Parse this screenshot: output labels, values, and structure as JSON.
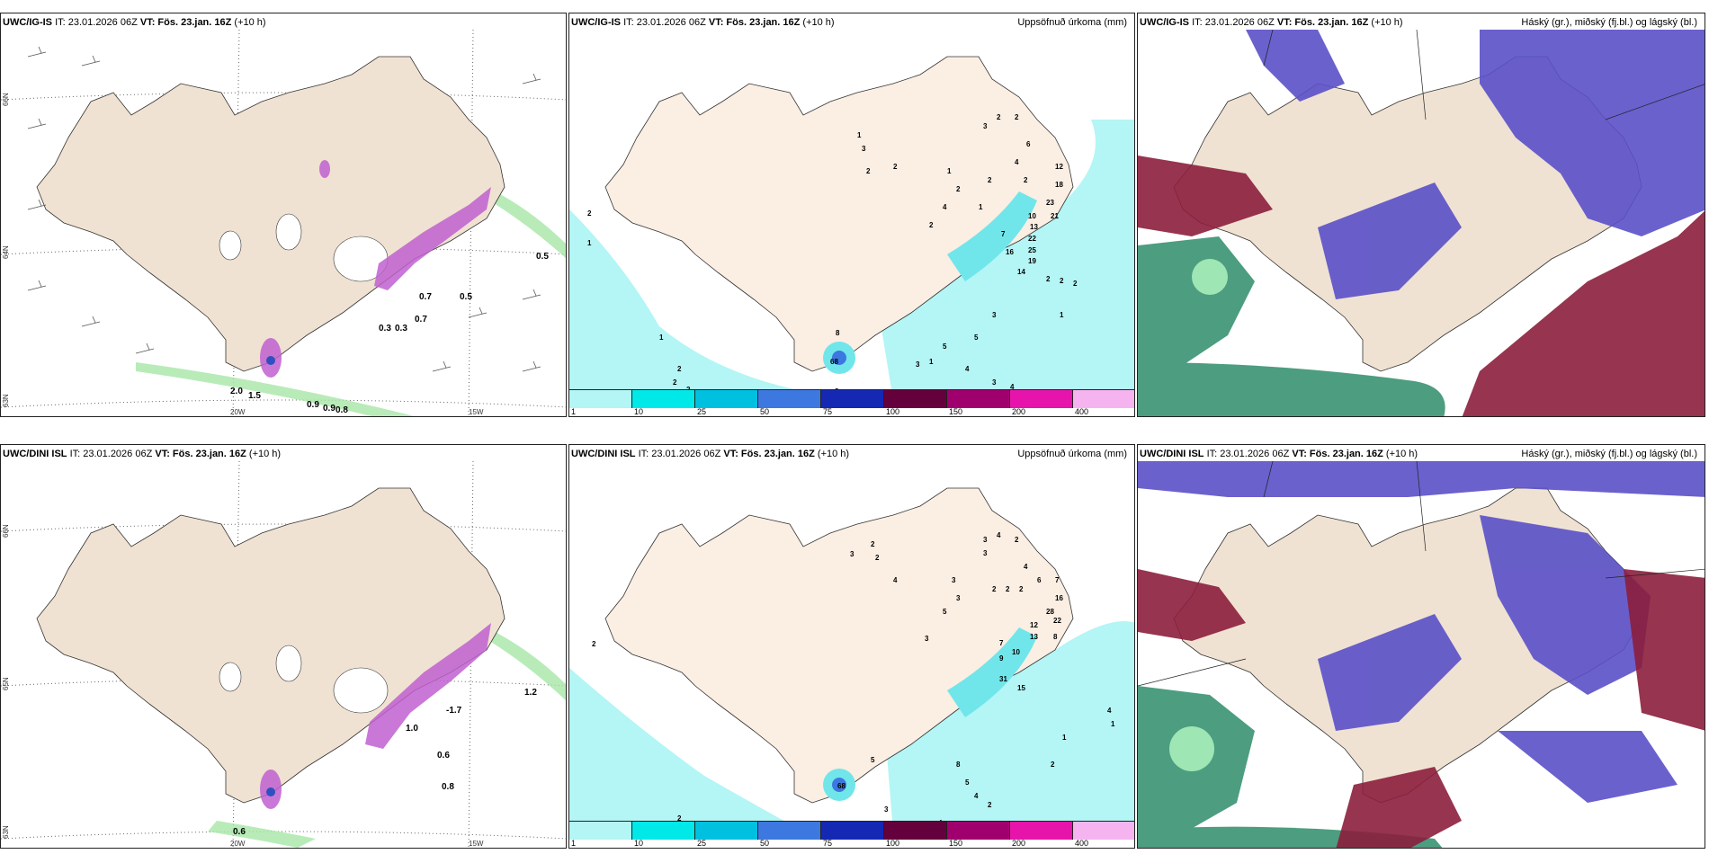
{
  "panels": {
    "top_left": {
      "model": "UWC/IG-IS",
      "it": "IT: 23.01.2026 06Z",
      "vt_label": "VT:",
      "vt": "Fös. 23.jan. 16Z",
      "lead": "(+10 h)"
    },
    "top_mid": {
      "model": "UWC/IG-IS",
      "it": "IT: 23.01.2026 06Z",
      "vt_label": "VT:",
      "vt": "Fös. 23.jan. 16Z",
      "lead": "(+10 h)",
      "right": "Uppsöfnuð úrkoma (mm)"
    },
    "top_right": {
      "model": "UWC/IG-IS",
      "it": "IT: 23.01.2026 06Z",
      "vt_label": "VT:",
      "vt": "Fös. 23.jan. 16Z",
      "lead": "(+10 h)",
      "right": "Háský (gr.), miðský (fj.bl.) og lágský (bl.)"
    },
    "bot_left": {
      "model": "UWC/DINI ISL",
      "it": "IT: 23.01.2026 06Z",
      "vt_label": "VT:",
      "vt": "Fös. 23.jan. 16Z",
      "lead": "(+10 h)"
    },
    "bot_mid": {
      "model": "UWC/DINI ISL",
      "it": "IT: 23.01.2026 06Z",
      "vt_label": "VT:",
      "vt": "Fös. 23.jan. 16Z",
      "lead": "(+10 h)",
      "right": "Uppsöfnuð úrkoma (mm)"
    },
    "bot_right": {
      "model": "UWC/DINI ISL",
      "it": "IT: 23.01.2026 06Z",
      "vt_label": "VT:",
      "vt": "Fös. 23.jan. 16Z",
      "lead": "(+10 h)",
      "right": "Háský (gr.), miðský (fj.bl.) og lágský (bl.)"
    }
  },
  "axes": {
    "lat66": "66N",
    "lat65": "65N",
    "lat64": "64N",
    "lat63": "63N",
    "lon20": "20W",
    "lon15": "15W"
  },
  "colorbar": {
    "ticks": [
      "1",
      "10",
      "25",
      "50",
      "75",
      "100",
      "150",
      "200",
      "400"
    ],
    "colors": [
      "#b4f5f5",
      "#00e8e8",
      "#00c0e0",
      "#3c78e0",
      "#1428b4",
      "#64003c",
      "#a0006e",
      "#e614aa",
      "#f5b4f0"
    ]
  },
  "labels_top_left": [
    "0.5",
    "0.7",
    "0.5",
    "0.7",
    "0.3",
    "0.3",
    "2.0",
    "1.5",
    "0.9",
    "0.9",
    "0.8"
  ],
  "labels_bot_left": [
    "1.2",
    "-1.7",
    "1.0",
    "0.6",
    "0.8",
    "0.6"
  ],
  "labels_top_mid": [
    "3",
    "2",
    "2",
    "6",
    "3",
    "1",
    "2",
    "2",
    "4",
    "12",
    "1",
    "2",
    "2",
    "18",
    "2",
    "4",
    "1",
    "23",
    "2",
    "21",
    "10",
    "13",
    "22",
    "25",
    "16",
    "7",
    "19",
    "14",
    "2",
    "2",
    "2",
    "1",
    "3",
    "3",
    "1",
    "5",
    "4",
    "5",
    "3",
    "4",
    "3",
    "2",
    "2",
    "2",
    "1",
    "1",
    "2",
    "8",
    "7",
    "7",
    "7",
    "8",
    "68"
  ],
  "labels_bot_mid": [
    "2",
    "3",
    "2",
    "3",
    "4",
    "2",
    "3",
    "3",
    "4",
    "7",
    "4",
    "6",
    "16",
    "2",
    "2",
    "2",
    "28",
    "5",
    "3",
    "12",
    "22",
    "13",
    "8",
    "3",
    "7",
    "10",
    "9",
    "31",
    "15",
    "4",
    "1",
    "1",
    "2",
    "5",
    "8",
    "5",
    "4",
    "2",
    "4",
    "3",
    "2",
    "2",
    "68"
  ]
}
